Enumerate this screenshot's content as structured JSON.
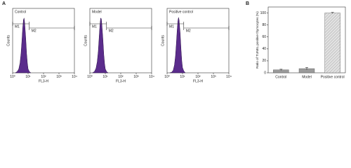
{
  "panel_labels": [
    "A",
    "B"
  ],
  "chart_data": [
    {
      "type": "area",
      "title": "Control",
      "xlabel": "FL3-H",
      "ylabel": "Counts",
      "log_x": true,
      "color": "#5b2c8c",
      "x": [
        1.5,
        2,
        2.5,
        3,
        3.5,
        4,
        4.5,
        5,
        5.5,
        6,
        7,
        8,
        9,
        10,
        12,
        15
      ],
      "values": [
        0,
        2,
        6,
        15,
        30,
        50,
        70,
        82,
        85,
        78,
        55,
        30,
        15,
        6,
        2,
        0
      ],
      "xlim": [
        1,
        10000
      ],
      "ylim": [
        0,
        100
      ],
      "xticks": [
        {
          "value": 1,
          "label": "10⁰"
        },
        {
          "value": 10,
          "label": "10¹"
        },
        {
          "value": 100,
          "label": "10²"
        },
        {
          "value": 1000,
          "label": "10³"
        },
        {
          "value": 10000,
          "label": "10⁴"
        }
      ],
      "gates": [
        {
          "label": "M1",
          "range": [
            1,
            12
          ]
        },
        {
          "label": "M2",
          "range": [
            12,
            10000
          ]
        }
      ]
    },
    {
      "type": "area",
      "title": "Model",
      "xlabel": "FL3-H",
      "ylabel": "Counts",
      "log_x": true,
      "color": "#5b2c8c",
      "x": [
        1.5,
        2,
        2.5,
        3,
        3.5,
        4,
        4.5,
        5,
        5.5,
        6,
        7,
        8,
        9,
        10,
        12,
        15
      ],
      "values": [
        0,
        2,
        7,
        17,
        33,
        55,
        74,
        85,
        84,
        75,
        52,
        28,
        14,
        6,
        2,
        0
      ],
      "xlim": [
        1,
        10000
      ],
      "ylim": [
        0,
        100
      ],
      "xticks": [
        {
          "value": 1,
          "label": "10⁰"
        },
        {
          "value": 10,
          "label": "10¹"
        },
        {
          "value": 100,
          "label": "10²"
        },
        {
          "value": 1000,
          "label": "10³"
        },
        {
          "value": 10000,
          "label": "10⁴"
        }
      ],
      "gates": [
        {
          "label": "M1",
          "range": [
            1,
            12
          ]
        },
        {
          "label": "M2",
          "range": [
            12,
            10000
          ]
        }
      ]
    },
    {
      "type": "area",
      "title": "Positive control",
      "xlabel": "FL3-H",
      "ylabel": "Counts",
      "log_x": true,
      "color": "#5b2c8c",
      "x": [
        1.5,
        2,
        2.5,
        3,
        3.5,
        4,
        4.5,
        5,
        5.5,
        6,
        7,
        8,
        9,
        10,
        12,
        15
      ],
      "values": [
        0,
        1,
        4,
        12,
        26,
        46,
        66,
        80,
        86,
        82,
        62,
        36,
        18,
        8,
        3,
        0
      ],
      "xlim": [
        1,
        10000
      ],
      "ylim": [
        0,
        100
      ],
      "xticks": [
        {
          "value": 1,
          "label": "10⁰"
        },
        {
          "value": 10,
          "label": "10¹"
        },
        {
          "value": 100,
          "label": "10²"
        },
        {
          "value": 1000,
          "label": "10³"
        },
        {
          "value": 10000,
          "label": "10⁴"
        }
      ],
      "gates": [
        {
          "label": "M1",
          "range": [
            1,
            12
          ]
        },
        {
          "label": "M2",
          "range": [
            12,
            10000
          ]
        }
      ]
    },
    {
      "type": "bar",
      "ylabel": "Ratio of TUNEL positive thymocytes (%)",
      "categories": [
        "Control",
        "Model",
        "Positive control"
      ],
      "values": [
        5,
        7,
        100
      ],
      "errors": [
        1,
        2,
        1
      ],
      "colors": [
        "#9a9a9a",
        "#9a9a9a",
        "#d6d6d6"
      ],
      "hatch": [
        false,
        false,
        true
      ],
      "ylim": [
        0,
        110
      ],
      "yticks": [
        0,
        20,
        40,
        60,
        80,
        100
      ]
    }
  ]
}
